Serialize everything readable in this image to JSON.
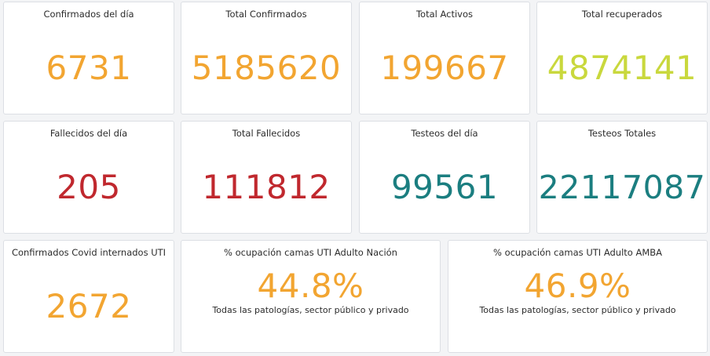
{
  "colors": {
    "orange": "#f2a531",
    "lime": "#c9d83d",
    "red": "#c0282e",
    "teal": "#1b7e80"
  },
  "cards": [
    {
      "title": "Confirmados del día",
      "value": "6731"
    },
    {
      "title": "Total Confirmados",
      "value": "5185620"
    },
    {
      "title": "Total Activos",
      "value": "199667"
    },
    {
      "title": "Total recuperados",
      "value": "4874141"
    },
    {
      "title": "Fallecidos del día",
      "value": "205"
    },
    {
      "title": "Total Fallecidos",
      "value": "111812"
    },
    {
      "title": "Testeos del día",
      "value": "99561"
    },
    {
      "title": "Testeos Totales",
      "value": "22117087"
    },
    {
      "title": "Confirmados Covid internados UTI",
      "value": "2672"
    },
    {
      "title": "% ocupación camas UTI Adulto Nación",
      "value": "44.8%",
      "subtitle": "Todas las patologías, sector público y privado"
    },
    {
      "title": "% ocupación camas UTI Adulto AMBA",
      "value": "46.9%",
      "subtitle": "Todas las patologías, sector público y privado"
    }
  ]
}
